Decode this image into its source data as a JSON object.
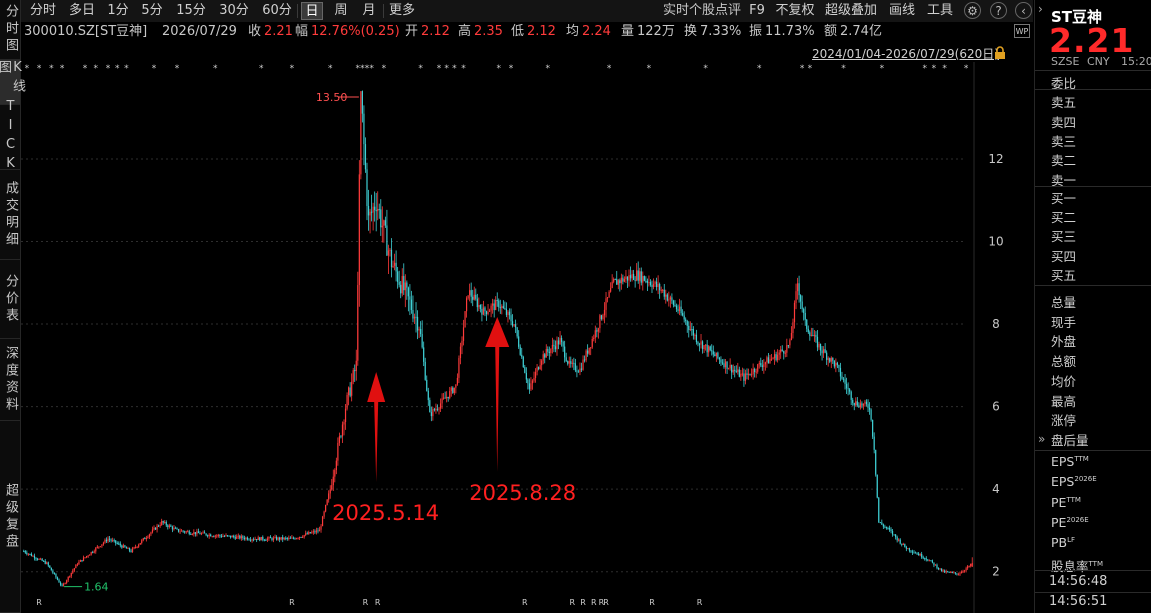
{
  "left_tabs": [
    {
      "label": "分时图",
      "name": "tab-timeshare"
    },
    {
      "label": "K线图",
      "name": "tab-kline"
    },
    {
      "label": "TICK",
      "name": "tab-tick"
    },
    {
      "label": "成交明细",
      "name": "tab-trade-details"
    },
    {
      "label": "分价表",
      "name": "tab-price-table"
    },
    {
      "label": "深度资料",
      "name": "tab-depth-data"
    },
    {
      "label": "超级复盘",
      "name": "tab-super-replay"
    }
  ],
  "toolbar": {
    "periods": [
      "分时",
      "多日",
      "1分",
      "5分",
      "15分",
      "30分",
      "60分",
      "日",
      "周",
      "月",
      "更多"
    ],
    "active_period": "日",
    "right_items": [
      "实时个股点评",
      "F9",
      "不复权",
      "超级叠加",
      "画线",
      "工具"
    ],
    "icons": [
      "gear-icon",
      "help-icon",
      "back-icon"
    ]
  },
  "info": {
    "code": "300010.SZ[ST豆神]",
    "date": "2026/07/29",
    "close_label": "收",
    "close": "2.21",
    "change_label": "幅",
    "change": "12.76%(0.25)",
    "open_label": "开",
    "open": "2.12",
    "high_label": "高",
    "high": "2.35",
    "low_label": "低",
    "low": "2.12",
    "avg_label": "均",
    "avg": "2.24",
    "vol_label": "量",
    "vol": "122万",
    "turnover_label": "换",
    "turnover": "7.33%",
    "amp_label": "振",
    "amp": "11.73%",
    "amount_label": "额",
    "amount": "2.74亿"
  },
  "range": "2024/01/04-2026/07/29(620日)",
  "badge": "WP",
  "side": {
    "name": "ST豆神",
    "price": "2.21",
    "exchange": "SZSE",
    "currency": "CNY",
    "time": "15:20",
    "order_labels": [
      "委比",
      "卖五",
      "卖四",
      "卖三",
      "卖二",
      "卖一",
      "买一",
      "买二",
      "买三",
      "买四",
      "买五"
    ],
    "stat_labels": [
      "总量",
      "现手",
      "外盘",
      "总额",
      "均价",
      "最高",
      "涨停",
      "盘后量"
    ],
    "valuation_labels": [
      {
        "text": "EPS",
        "sup": "TTM"
      },
      {
        "text": "EPS",
        "sup": "2026E"
      },
      {
        "text": "PE",
        "sup": "TTM"
      },
      {
        "text": "PE",
        "sup": "2026E"
      },
      {
        "text": "PB",
        "sup": "LF"
      },
      {
        "text": "股息率",
        "sup": "TTM"
      }
    ],
    "times": [
      "14:56:48",
      "14:56:51"
    ]
  },
  "colors": {
    "up": "#ff3b3b",
    "down": "#3fd1d6",
    "grid": "#2e2e2e",
    "accent": "#ff2a2a",
    "low_marker": "#21c26a"
  },
  "chart_data": {
    "type": "candlestick",
    "y_ticks": [
      2.0,
      4.0,
      6.0,
      8.0,
      10.0,
      12.0
    ],
    "ylim": [
      1.0,
      14.3
    ],
    "max_label": "13.50",
    "min_label": "1.64",
    "max_value": 13.5,
    "min_value": 1.64,
    "annotations": [
      {
        "text": "2025.5.14",
        "target_index": 230
      },
      {
        "text": "2025.8.28",
        "target_index": 309
      }
    ],
    "anchors": [
      [
        0,
        2.5
      ],
      [
        15,
        2.2
      ],
      [
        25,
        1.64
      ],
      [
        35,
        2.2
      ],
      [
        55,
        2.8
      ],
      [
        70,
        2.5
      ],
      [
        90,
        3.2
      ],
      [
        100,
        3.0
      ],
      [
        120,
        2.9
      ],
      [
        150,
        2.8
      ],
      [
        175,
        2.8
      ],
      [
        193,
        3.0
      ],
      [
        200,
        4.0
      ],
      [
        210,
        6.0
      ],
      [
        217,
        7.0
      ],
      [
        220,
        13.5
      ],
      [
        225,
        10.5
      ],
      [
        230,
        11.0
      ],
      [
        240,
        9.5
      ],
      [
        252,
        8.5
      ],
      [
        258,
        8.0
      ],
      [
        265,
        5.8
      ],
      [
        275,
        6.2
      ],
      [
        282,
        6.5
      ],
      [
        290,
        8.8
      ],
      [
        300,
        8.3
      ],
      [
        310,
        8.5
      ],
      [
        320,
        8.0
      ],
      [
        330,
        6.4
      ],
      [
        338,
        7.2
      ],
      [
        350,
        7.6
      ],
      [
        356,
        7.0
      ],
      [
        363,
        6.9
      ],
      [
        375,
        8.0
      ],
      [
        385,
        9.0
      ],
      [
        400,
        9.2
      ],
      [
        410,
        9.0
      ],
      [
        417,
        8.8
      ],
      [
        428,
        8.3
      ],
      [
        440,
        7.6
      ],
      [
        452,
        7.2
      ],
      [
        470,
        6.7
      ],
      [
        480,
        7.0
      ],
      [
        490,
        7.2
      ],
      [
        500,
        7.5
      ],
      [
        505,
        9.0
      ],
      [
        510,
        8.0
      ],
      [
        520,
        7.4
      ],
      [
        530,
        7.0
      ],
      [
        542,
        6.1
      ],
      [
        552,
        6.0
      ],
      [
        555,
        5.0
      ],
      [
        558,
        3.2
      ],
      [
        565,
        3.0
      ],
      [
        575,
        2.6
      ],
      [
        590,
        2.3
      ],
      [
        600,
        2.0
      ],
      [
        610,
        1.95
      ],
      [
        620,
        2.21
      ]
    ],
    "star_rows": {
      "top": "two-star-per-signal",
      "bottom": "R"
    }
  }
}
